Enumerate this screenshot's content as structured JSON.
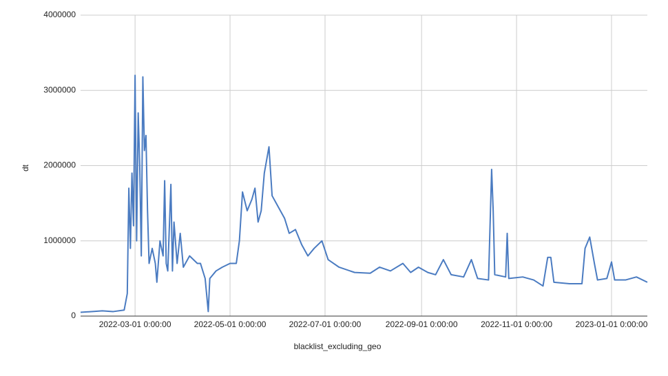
{
  "chart_data": {
    "type": "line",
    "x_label": "blacklist_excluding_geo",
    "y_label": "dt",
    "xlim": [
      "2022-01-25",
      "2023-01-24"
    ],
    "xticks": [
      {
        "value": "2022-03-01",
        "label": "2022-03-01 0:00:00"
      },
      {
        "value": "2022-05-01",
        "label": "2022-05-01 0:00:00"
      },
      {
        "value": "2022-07-01",
        "label": "2022-07-01 0:00:00"
      },
      {
        "value": "2022-09-01",
        "label": "2022-09-01 0:00:00"
      },
      {
        "value": "2022-11-01",
        "label": "2022-11-01 0:00:00"
      },
      {
        "value": "2023-01-01",
        "label": "2023-01-01 0:00:00"
      }
    ],
    "ylim": [
      0,
      4000000
    ],
    "yticks": [
      0,
      1000000,
      2000000,
      3000000,
      4000000
    ],
    "grid": true,
    "x": [
      "2022-01-25",
      "2022-02-01",
      "2022-02-08",
      "2022-02-15",
      "2022-02-22",
      "2022-02-24",
      "2022-02-25",
      "2022-02-26",
      "2022-02-27",
      "2022-02-28",
      "2022-03-01",
      "2022-03-02",
      "2022-03-03",
      "2022-03-04",
      "2022-03-05",
      "2022-03-06",
      "2022-03-07",
      "2022-03-08",
      "2022-03-09",
      "2022-03-10",
      "2022-03-12",
      "2022-03-14",
      "2022-03-15",
      "2022-03-17",
      "2022-03-19",
      "2022-03-20",
      "2022-03-21",
      "2022-03-22",
      "2022-03-24",
      "2022-03-25",
      "2022-03-26",
      "2022-03-28",
      "2022-03-30",
      "2022-04-01",
      "2022-04-05",
      "2022-04-10",
      "2022-04-12",
      "2022-04-15",
      "2022-04-17",
      "2022-04-18",
      "2022-04-22",
      "2022-04-26",
      "2022-05-01",
      "2022-05-05",
      "2022-05-07",
      "2022-05-09",
      "2022-05-12",
      "2022-05-15",
      "2022-05-17",
      "2022-05-19",
      "2022-05-21",
      "2022-05-23",
      "2022-05-26",
      "2022-05-28",
      "2022-06-01",
      "2022-06-05",
      "2022-06-08",
      "2022-06-12",
      "2022-06-16",
      "2022-06-20",
      "2022-06-24",
      "2022-06-29",
      "2022-07-03",
      "2022-07-10",
      "2022-07-20",
      "2022-07-30",
      "2022-08-05",
      "2022-08-12",
      "2022-08-20",
      "2022-08-25",
      "2022-08-30",
      "2022-09-05",
      "2022-09-10",
      "2022-09-15",
      "2022-09-20",
      "2022-09-28",
      "2022-10-03",
      "2022-10-07",
      "2022-10-14",
      "2022-10-16",
      "2022-10-17",
      "2022-10-18",
      "2022-10-25",
      "2022-10-26",
      "2022-10-27",
      "2022-11-05",
      "2022-11-12",
      "2022-11-18",
      "2022-11-21",
      "2022-11-23",
      "2022-11-25",
      "2022-12-05",
      "2022-12-13",
      "2022-12-15",
      "2022-12-18",
      "2022-12-21",
      "2022-12-23",
      "2022-12-29",
      "2023-01-01",
      "2023-01-03",
      "2023-01-10",
      "2023-01-17",
      "2023-01-24"
    ],
    "series": [
      {
        "name": "dt",
        "color": "#4a7bc1",
        "values": [
          50000,
          60000,
          70000,
          60000,
          80000,
          300000,
          1700000,
          900000,
          1900000,
          1200000,
          3200000,
          1000000,
          2700000,
          2000000,
          800000,
          3180000,
          2200000,
          2400000,
          1400000,
          700000,
          900000,
          700000,
          450000,
          1000000,
          800000,
          1800000,
          700000,
          600000,
          1750000,
          600000,
          1250000,
          700000,
          1100000,
          650000,
          800000,
          700000,
          700000,
          500000,
          60000,
          500000,
          600000,
          650000,
          700000,
          700000,
          1000000,
          1650000,
          1400000,
          1550000,
          1700000,
          1250000,
          1400000,
          1900000,
          2250000,
          1600000,
          1450000,
          1300000,
          1100000,
          1150000,
          950000,
          800000,
          900000,
          1000000,
          750000,
          650000,
          580000,
          570000,
          650000,
          600000,
          700000,
          580000,
          650000,
          580000,
          550000,
          750000,
          550000,
          520000,
          750000,
          500000,
          480000,
          1950000,
          1400000,
          550000,
          520000,
          1100000,
          500000,
          520000,
          480000,
          400000,
          780000,
          780000,
          450000,
          430000,
          430000,
          900000,
          1050000,
          700000,
          480000,
          500000,
          720000,
          480000,
          480000,
          520000,
          450000
        ]
      }
    ]
  }
}
